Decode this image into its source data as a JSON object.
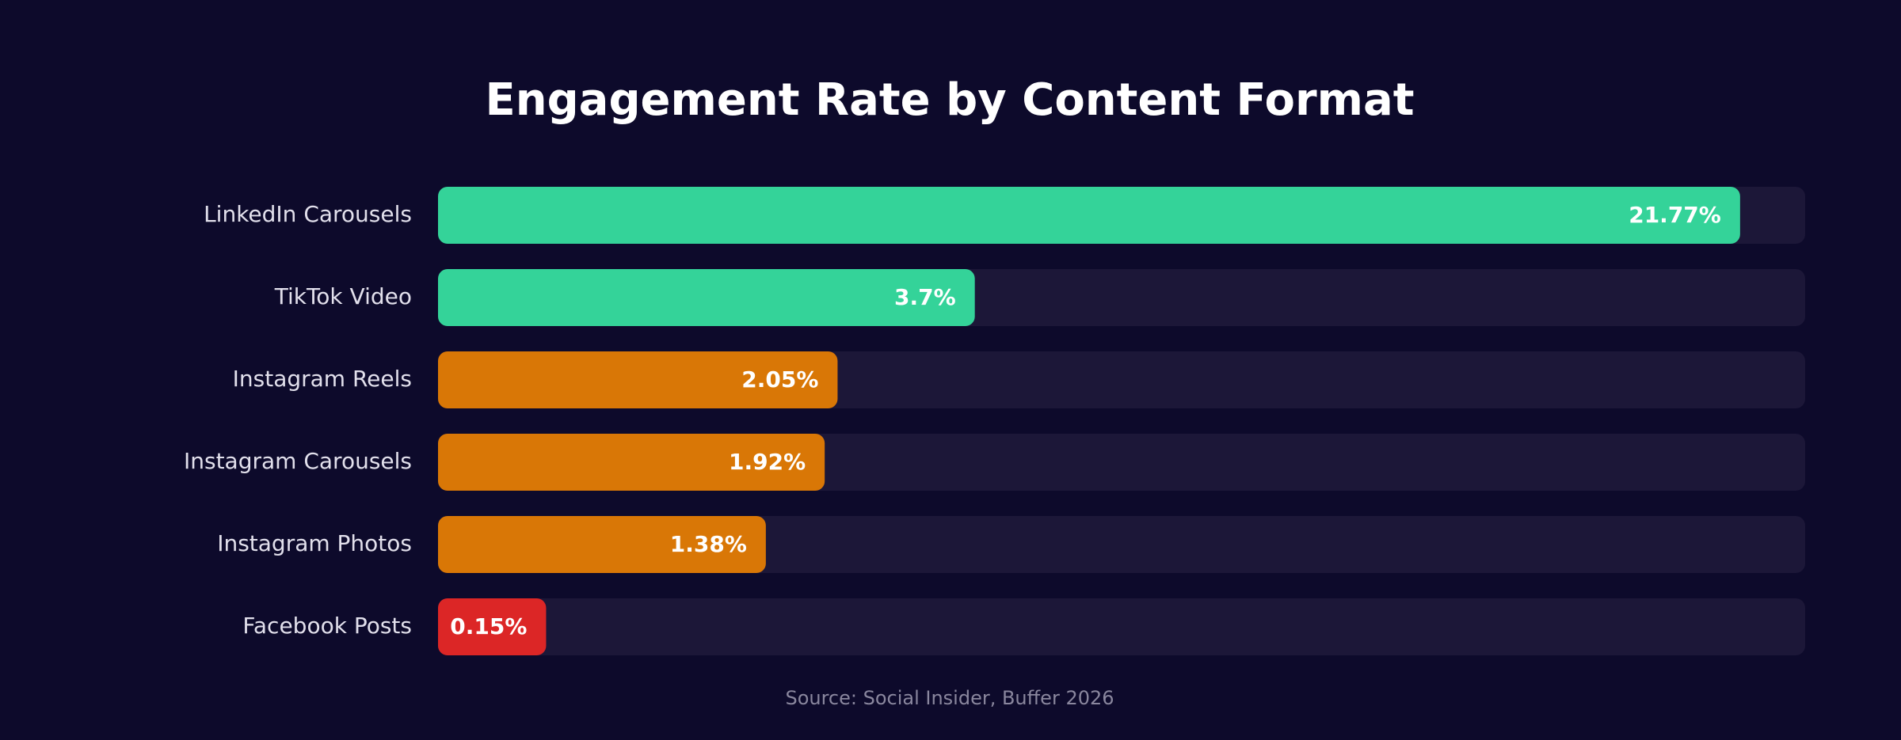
{
  "chart_data": {
    "type": "hbar",
    "title": "Engagement Rate by Content Format",
    "categories": [
      "LinkedIn Carousels",
      "TikTok Video",
      "Instagram Reels",
      "Instagram Carousels",
      "Instagram Photos",
      "Facebook Posts"
    ],
    "values": [
      21.77,
      3.7,
      2.05,
      1.92,
      1.38,
      0.15
    ],
    "value_labels": [
      "21.77%",
      "3.7%",
      "2.05%",
      "1.92%",
      "1.38%",
      "0.15%"
    ],
    "colors": [
      "#34d399",
      "#34d399",
      "#d97706",
      "#d97706",
      "#d97706",
      "#dc2626"
    ],
    "xlim": [
      0,
      24
    ],
    "scale": "sqrt",
    "source": "Source: Social Insider, Buffer 2026"
  }
}
